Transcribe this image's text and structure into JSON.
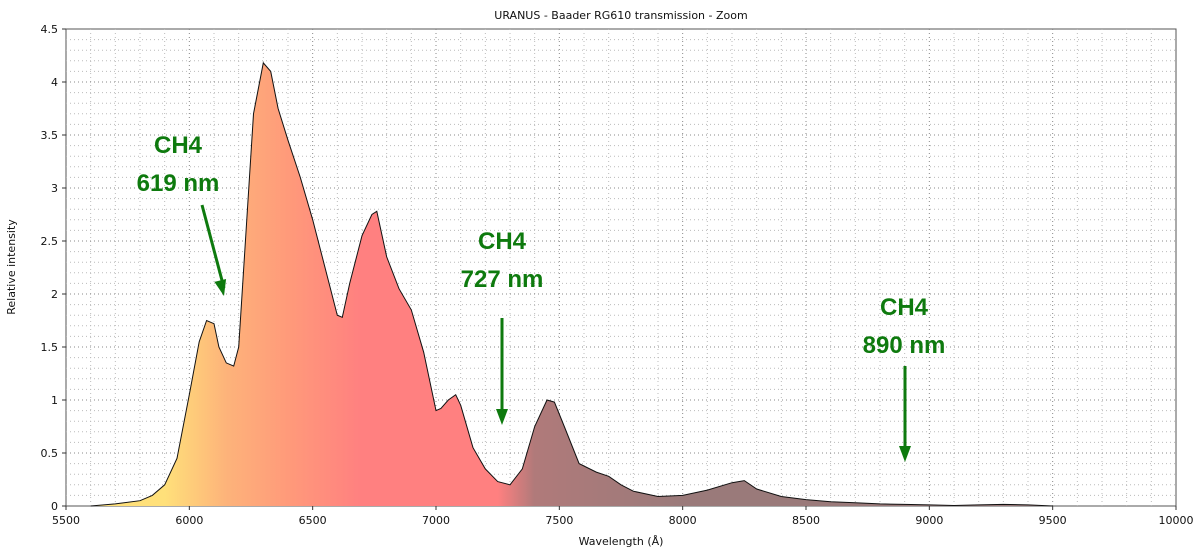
{
  "chart_data": {
    "type": "area",
    "title": "URANUS - Baader RG610  transmission - Zoom",
    "xlabel": "Wavelength (Å)",
    "ylabel": "Relative intensity",
    "xlim": [
      5500,
      10000
    ],
    "ylim": [
      0,
      4.5
    ],
    "grid": true,
    "x_ticks": [
      "5500",
      "6000",
      "6500",
      "7000",
      "7500",
      "8000",
      "8500",
      "9000",
      "9500",
      "10000"
    ],
    "y_ticks": [
      "0",
      "0.5",
      "1",
      "1.5",
      "2",
      "2.5",
      "3",
      "3.5",
      "4",
      "4.5"
    ],
    "series": [
      {
        "x": [
          5600,
          5700,
          5800,
          5850,
          5900,
          5950,
          6000,
          6040,
          6070,
          6100,
          6120,
          6150,
          6180,
          6200,
          6230,
          6260,
          6300,
          6330,
          6360,
          6400,
          6450,
          6500,
          6550,
          6600,
          6620,
          6650,
          6700,
          6740,
          6760,
          6800,
          6850,
          6900,
          6950,
          7000,
          7020,
          7050,
          7080,
          7100,
          7150,
          7200,
          7250,
          7300,
          7350,
          7400,
          7450,
          7480,
          7520,
          7580,
          7650,
          7700,
          7750,
          7800,
          7900,
          8000,
          8100,
          8200,
          8250,
          8300,
          8400,
          8500,
          8600,
          8700,
          8800,
          8900,
          9000,
          9100,
          9200,
          9300,
          9400,
          9500
        ],
        "values": [
          0.0,
          0.02,
          0.05,
          0.1,
          0.2,
          0.45,
          1.05,
          1.55,
          1.75,
          1.72,
          1.5,
          1.35,
          1.32,
          1.5,
          2.6,
          3.7,
          4.18,
          4.1,
          3.75,
          3.45,
          3.1,
          2.7,
          2.25,
          1.8,
          1.78,
          2.1,
          2.55,
          2.75,
          2.78,
          2.35,
          2.05,
          1.85,
          1.45,
          0.9,
          0.92,
          1.0,
          1.05,
          0.95,
          0.55,
          0.35,
          0.23,
          0.2,
          0.35,
          0.75,
          1.0,
          0.98,
          0.75,
          0.4,
          0.32,
          0.28,
          0.2,
          0.14,
          0.09,
          0.1,
          0.15,
          0.22,
          0.24,
          0.16,
          0.09,
          0.06,
          0.04,
          0.03,
          0.02,
          0.015,
          0.01,
          0.005,
          0.01,
          0.015,
          0.01,
          0.0
        ]
      }
    ],
    "fill_colors": {
      "start": "#ffe07a",
      "orange": "#fdb37a",
      "salmon": "#ff9a7a",
      "red": "#ff8080",
      "mauve": "#b07a7a",
      "gray": "#9a7a7a",
      "line": "#111111"
    },
    "annotations": [
      {
        "lines": [
          "CH4",
          "619 nm"
        ],
        "arrow_to_x": 6190,
        "color": "#0e7a0e"
      },
      {
        "lines": [
          "CH4",
          "727 nm"
        ],
        "arrow_to_x": 7270,
        "color": "#0e7a0e"
      },
      {
        "lines": [
          "CH4",
          "890 nm"
        ],
        "arrow_to_x": 8900,
        "color": "#0e7a0e"
      }
    ]
  }
}
